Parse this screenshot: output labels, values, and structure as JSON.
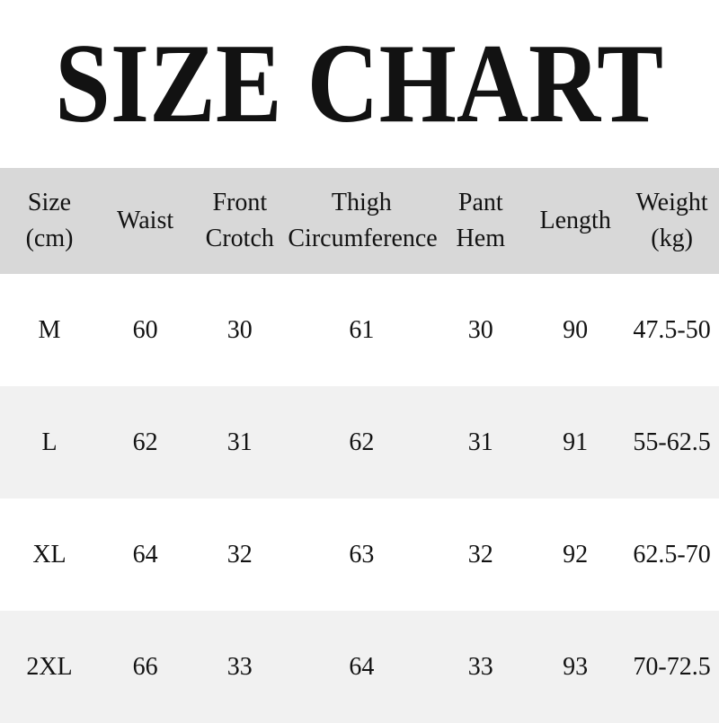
{
  "title": "SIZE CHART",
  "table": {
    "headers": [
      "Size\n(cm)",
      "Waist",
      "Front\nCrotch",
      "Thigh\nCircumference",
      "Pant\nHem",
      "Length",
      "Weight\n(kg)"
    ],
    "rows": [
      [
        "M",
        "60",
        "30",
        "61",
        "30",
        "90",
        "47.5-50"
      ],
      [
        "L",
        "62",
        "31",
        "62",
        "31",
        "91",
        "55-62.5"
      ],
      [
        "XL",
        "64",
        "32",
        "63",
        "32",
        "92",
        "62.5-70"
      ],
      [
        "2XL",
        "66",
        "33",
        "64",
        "33",
        "93",
        "70-72.5"
      ]
    ]
  },
  "colors": {
    "header_bg": "#d8d8d8",
    "stripe_bg": "#f1f1f1",
    "text": "#121212",
    "background": "#ffffff"
  }
}
